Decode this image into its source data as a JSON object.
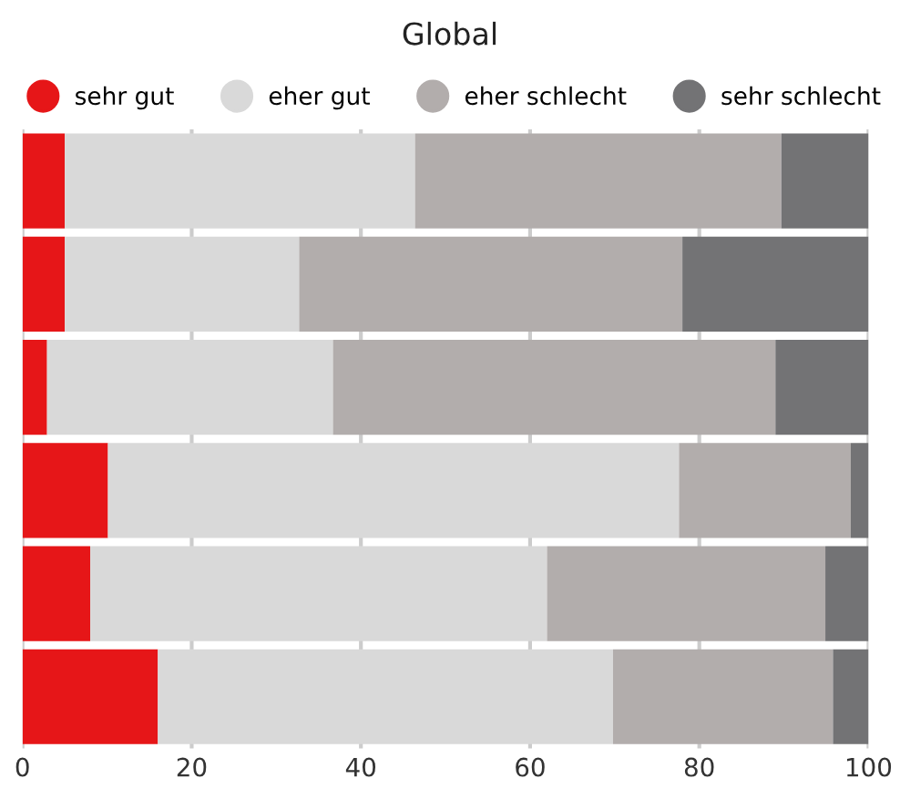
{
  "chart_data": {
    "type": "bar",
    "orientation": "horizontal",
    "stacked": true,
    "title": "Global",
    "categories": [
      null,
      null,
      null,
      null,
      null,
      null
    ],
    "series": [
      {
        "name": "sehr gut",
        "color": "#e61618",
        "values": [
          5,
          5,
          2.9,
          10.1,
          8,
          16
        ]
      },
      {
        "name": "eher gut",
        "color": "#d9d9d9",
        "values": [
          41.4,
          27.7,
          33.8,
          67.5,
          54,
          53.8
        ]
      },
      {
        "name": "eher schlecht",
        "color": "#b2adac",
        "values": [
          43.3,
          45.3,
          52.3,
          20.3,
          32.9,
          26
        ]
      },
      {
        "name": "sehr schlecht",
        "color": "#737375",
        "values": [
          10.3,
          22,
          11,
          2.1,
          5.1,
          4.2
        ]
      }
    ],
    "xlim": [
      0,
      100
    ],
    "xticks": [
      0,
      20,
      40,
      60,
      80,
      100
    ],
    "grid": "x",
    "legend": "top",
    "tick_labels": "x"
  }
}
